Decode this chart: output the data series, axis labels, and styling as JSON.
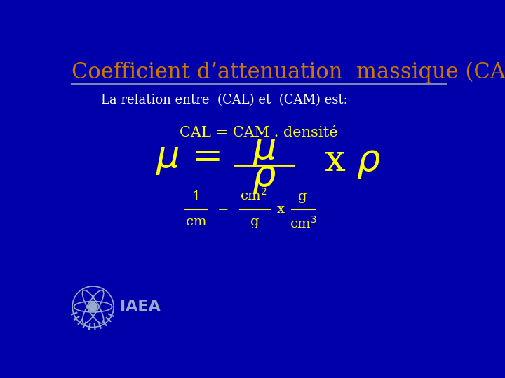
{
  "background_color": "#0000AA",
  "title": "Coefficient d’attenuation  massique (CAM)",
  "title_color": "#CC7700",
  "title_fontsize": 22,
  "line_color": "#7788AA",
  "subtitle": "La relation entre  (CAL) et  (CAM) est:",
  "subtitle_color": "#FFFFFF",
  "subtitle_fontsize": 13,
  "equation1": "CAL = CAM . densité",
  "equation1_color": "#FFFF00",
  "equation1_fontsize": 15,
  "mu_eq_fontsize": 38,
  "equation2_color": "#FFFF00",
  "units_color": "#FFFF00",
  "units_fontsize": 14,
  "iaea_color": "#99AACC",
  "iaea_fontsize": 16
}
